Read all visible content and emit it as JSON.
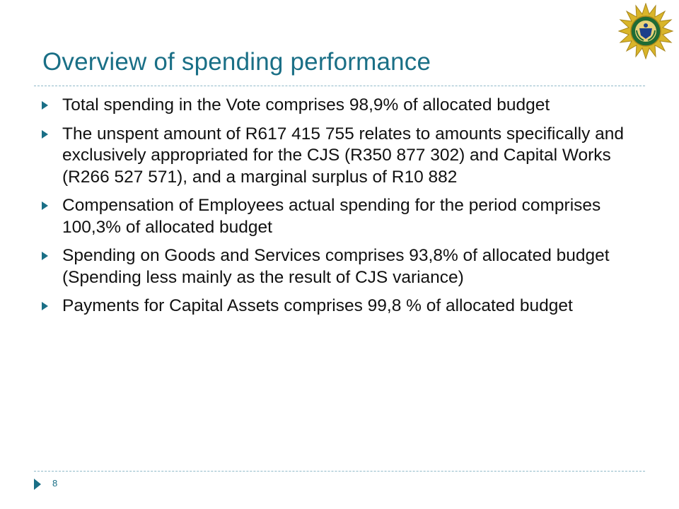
{
  "slide": {
    "title": "Overview of spending performance",
    "logo_icon": "police-star-emblem-icon",
    "bullets": [
      {
        "text": "Total spending in the Vote comprises 98,9% of allocated budget"
      },
      {
        "text": "The unspent amount of R617 415 755 relates to amounts specifically and exclusively appropriated for the CJS (R350 877 302) and Capital Works (R266 527 571), and a marginal surplus of R10 882"
      },
      {
        "text": "Compensation of Employees actual spending for the period comprises 100,3% of allocated budget"
      },
      {
        "text": "Spending on Goods and Services comprises 93,8% of allocated budget (Spending less mainly as the result of CJS variance)"
      },
      {
        "text": "Payments for Capital Assets comprises 99,8 % of allocated budget"
      }
    ],
    "page_number": "8"
  },
  "colors": {
    "accent": "#1a6f86",
    "rule": "#8fb9c8",
    "logo_gold": "#d9b52a",
    "logo_green": "#1f6b35",
    "logo_blue": "#1b3f8a"
  }
}
